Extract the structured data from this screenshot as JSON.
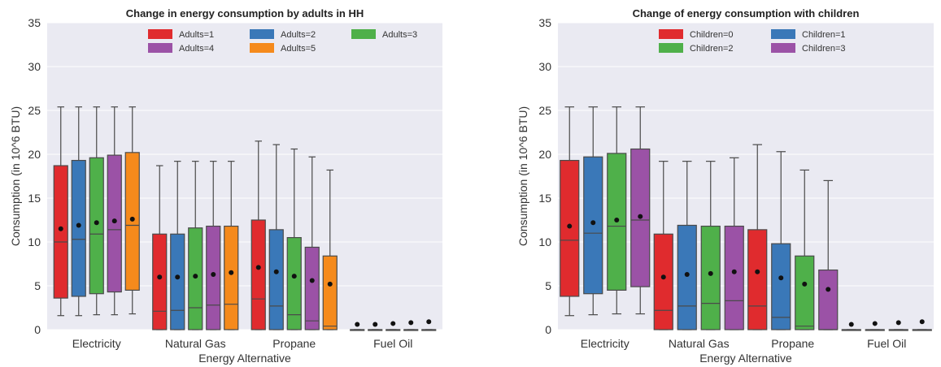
{
  "chart_data": [
    {
      "type": "box",
      "title": "Change in energy consumption by adults in HH",
      "xlabel": "Energy Alternative",
      "ylabel": "Consumption (in 10^6 BTU)",
      "ylim": [
        0,
        35
      ],
      "yticks": [
        0,
        5,
        10,
        15,
        20,
        25,
        30,
        35
      ],
      "grid": true,
      "legend_position": "top-right",
      "categories": [
        "Electricity",
        "Natural Gas",
        "Propane",
        "Fuel Oil"
      ],
      "series": [
        {
          "name": "Adults=1",
          "color": "#e02b2e",
          "boxes": [
            {
              "whislo": 1.6,
              "q1": 3.6,
              "med": 10.0,
              "q3": 18.7,
              "whishi": 25.4,
              "mean": 11.5
            },
            {
              "whislo": 0.0,
              "q1": 0.0,
              "med": 2.1,
              "q3": 10.9,
              "whishi": 18.7,
              "mean": 6.0
            },
            {
              "whislo": 0.0,
              "q1": 0.0,
              "med": 3.5,
              "q3": 12.5,
              "whishi": 21.5,
              "mean": 7.1
            },
            {
              "whislo": 0.0,
              "q1": 0.0,
              "med": 0.0,
              "q3": 0.0,
              "whishi": 0.0,
              "mean": 0.6
            }
          ]
        },
        {
          "name": "Adults=2",
          "color": "#3a78b8",
          "boxes": [
            {
              "whislo": 1.6,
              "q1": 3.8,
              "med": 10.3,
              "q3": 19.3,
              "whishi": 25.4,
              "mean": 11.9
            },
            {
              "whislo": 0.0,
              "q1": 0.0,
              "med": 2.2,
              "q3": 10.9,
              "whishi": 19.2,
              "mean": 6.0
            },
            {
              "whislo": 0.0,
              "q1": 0.0,
              "med": 2.7,
              "q3": 11.4,
              "whishi": 21.1,
              "mean": 6.6
            },
            {
              "whislo": 0.0,
              "q1": 0.0,
              "med": 0.0,
              "q3": 0.0,
              "whishi": 0.0,
              "mean": 0.6
            }
          ]
        },
        {
          "name": "Adults=3",
          "color": "#4fb04a",
          "boxes": [
            {
              "whislo": 1.7,
              "q1": 4.1,
              "med": 10.9,
              "q3": 19.6,
              "whishi": 25.4,
              "mean": 12.2
            },
            {
              "whislo": 0.0,
              "q1": 0.0,
              "med": 2.5,
              "q3": 11.6,
              "whishi": 19.2,
              "mean": 6.1
            },
            {
              "whislo": 0.0,
              "q1": 0.0,
              "med": 1.7,
              "q3": 10.5,
              "whishi": 20.6,
              "mean": 6.1
            },
            {
              "whislo": 0.0,
              "q1": 0.0,
              "med": 0.0,
              "q3": 0.0,
              "whishi": 0.0,
              "mean": 0.7
            }
          ]
        },
        {
          "name": "Adults=4",
          "color": "#9b52a6",
          "boxes": [
            {
              "whislo": 1.7,
              "q1": 4.3,
              "med": 11.4,
              "q3": 19.9,
              "whishi": 25.4,
              "mean": 12.4
            },
            {
              "whislo": 0.0,
              "q1": 0.0,
              "med": 2.8,
              "q3": 11.8,
              "whishi": 19.2,
              "mean": 6.3
            },
            {
              "whislo": 0.0,
              "q1": 0.0,
              "med": 1.0,
              "q3": 9.4,
              "whishi": 19.7,
              "mean": 5.6
            },
            {
              "whislo": 0.0,
              "q1": 0.0,
              "med": 0.0,
              "q3": 0.0,
              "whishi": 0.0,
              "mean": 0.8
            }
          ]
        },
        {
          "name": "Adults=5",
          "color": "#f58a1c",
          "boxes": [
            {
              "whislo": 1.8,
              "q1": 4.5,
              "med": 11.9,
              "q3": 20.2,
              "whishi": 25.4,
              "mean": 12.6
            },
            {
              "whislo": 0.0,
              "q1": 0.0,
              "med": 2.9,
              "q3": 11.8,
              "whishi": 19.2,
              "mean": 6.5
            },
            {
              "whislo": 0.0,
              "q1": 0.0,
              "med": 0.4,
              "q3": 8.4,
              "whishi": 18.2,
              "mean": 5.2
            },
            {
              "whislo": 0.0,
              "q1": 0.0,
              "med": 0.0,
              "q3": 0.0,
              "whishi": 0.0,
              "mean": 0.9
            }
          ]
        }
      ]
    },
    {
      "type": "box",
      "title": "Change of energy consumption with children",
      "xlabel": "Energy Alternative",
      "ylabel": "Consumption (in 10^6 BTU)",
      "ylim": [
        0,
        35
      ],
      "yticks": [
        0,
        5,
        10,
        15,
        20,
        25,
        30,
        35
      ],
      "grid": true,
      "legend_position": "top-right",
      "categories": [
        "Electricity",
        "Natural Gas",
        "Propane",
        "Fuel Oil"
      ],
      "series": [
        {
          "name": "Children=0",
          "color": "#e02b2e",
          "boxes": [
            {
              "whislo": 1.6,
              "q1": 3.8,
              "med": 10.2,
              "q3": 19.3,
              "whishi": 25.4,
              "mean": 11.8
            },
            {
              "whislo": 0.0,
              "q1": 0.0,
              "med": 2.2,
              "q3": 10.9,
              "whishi": 19.2,
              "mean": 6.0
            },
            {
              "whislo": 0.0,
              "q1": 0.0,
              "med": 2.7,
              "q3": 11.4,
              "whishi": 21.1,
              "mean": 6.6
            },
            {
              "whislo": 0.0,
              "q1": 0.0,
              "med": 0.0,
              "q3": 0.0,
              "whishi": 0.0,
              "mean": 0.6
            }
          ]
        },
        {
          "name": "Children=1",
          "color": "#3a78b8",
          "boxes": [
            {
              "whislo": 1.7,
              "q1": 4.1,
              "med": 11.0,
              "q3": 19.7,
              "whishi": 25.4,
              "mean": 12.2
            },
            {
              "whislo": 0.0,
              "q1": 0.0,
              "med": 2.7,
              "q3": 11.9,
              "whishi": 19.2,
              "mean": 6.3
            },
            {
              "whislo": 0.0,
              "q1": 0.0,
              "med": 1.4,
              "q3": 9.8,
              "whishi": 20.3,
              "mean": 5.9
            },
            {
              "whislo": 0.0,
              "q1": 0.0,
              "med": 0.0,
              "q3": 0.0,
              "whishi": 0.0,
              "mean": 0.7
            }
          ]
        },
        {
          "name": "Children=2",
          "color": "#4fb04a",
          "boxes": [
            {
              "whislo": 1.8,
              "q1": 4.5,
              "med": 11.8,
              "q3": 20.1,
              "whishi": 25.4,
              "mean": 12.5
            },
            {
              "whislo": 0.0,
              "q1": 0.0,
              "med": 3.0,
              "q3": 11.8,
              "whishi": 19.2,
              "mean": 6.4
            },
            {
              "whislo": 0.0,
              "q1": 0.0,
              "med": 0.4,
              "q3": 8.4,
              "whishi": 18.2,
              "mean": 5.2
            },
            {
              "whislo": 0.0,
              "q1": 0.0,
              "med": 0.0,
              "q3": 0.0,
              "whishi": 0.0,
              "mean": 0.8
            }
          ]
        },
        {
          "name": "Children=3",
          "color": "#9b52a6",
          "boxes": [
            {
              "whislo": 1.8,
              "q1": 4.9,
              "med": 12.5,
              "q3": 20.6,
              "whishi": 25.4,
              "mean": 12.9
            },
            {
              "whislo": 0.0,
              "q1": 0.0,
              "med": 3.3,
              "q3": 11.8,
              "whishi": 19.6,
              "mean": 6.6
            },
            {
              "whislo": 0.0,
              "q1": 0.0,
              "med": 0.0,
              "q3": 6.8,
              "whishi": 17.0,
              "mean": 4.6
            },
            {
              "whislo": 0.0,
              "q1": 0.0,
              "med": 0.0,
              "q3": 0.0,
              "whishi": 0.0,
              "mean": 0.9
            }
          ]
        }
      ]
    }
  ]
}
